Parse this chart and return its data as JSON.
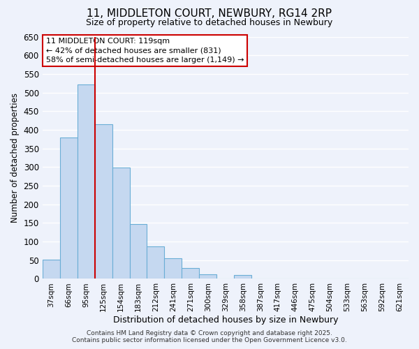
{
  "title": "11, MIDDLETON COURT, NEWBURY, RG14 2RP",
  "subtitle": "Size of property relative to detached houses in Newbury",
  "bar_color": "#c5d8f0",
  "bar_edge_color": "#6aaed6",
  "background_color": "#eef2fb",
  "grid_color": "#ffffff",
  "bin_labels": [
    "37sqm",
    "66sqm",
    "95sqm",
    "125sqm",
    "154sqm",
    "183sqm",
    "212sqm",
    "241sqm",
    "271sqm",
    "300sqm",
    "329sqm",
    "358sqm",
    "387sqm",
    "417sqm",
    "446sqm",
    "475sqm",
    "504sqm",
    "533sqm",
    "563sqm",
    "592sqm",
    "621sqm"
  ],
  "bar_values": [
    52,
    379,
    521,
    415,
    298,
    147,
    87,
    55,
    29,
    12,
    0,
    10,
    0,
    0,
    0,
    0,
    0,
    0,
    0,
    0,
    0
  ],
  "ylim": [
    0,
    650
  ],
  "yticks": [
    0,
    50,
    100,
    150,
    200,
    250,
    300,
    350,
    400,
    450,
    500,
    550,
    600,
    650
  ],
  "ylabel": "Number of detached properties",
  "xlabel": "Distribution of detached houses by size in Newbury",
  "vline_x_idx": 2,
  "vline_color": "#cc0000",
  "annotation_title": "11 MIDDLETON COURT: 119sqm",
  "annotation_line1": "← 42% of detached houses are smaller (831)",
  "annotation_line2": "58% of semi-detached houses are larger (1,149) →",
  "annotation_box_color": "#ffffff",
  "annotation_box_edge": "#cc0000",
  "footer1": "Contains HM Land Registry data © Crown copyright and database right 2025.",
  "footer2": "Contains public sector information licensed under the Open Government Licence v3.0."
}
